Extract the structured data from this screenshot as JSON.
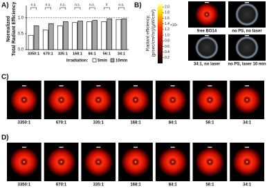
{
  "panel_labels": [
    "A)",
    "B)",
    "C)",
    "D)"
  ],
  "chart_data": {
    "type": "bar",
    "ylabel": [
      "Normalized",
      "Total Radiant Efficiency"
    ],
    "categories": [
      "3350:1",
      "670:1",
      "335:1",
      "168:1",
      "84:1",
      "56:1",
      "34:1"
    ],
    "series": [
      {
        "name": "5min",
        "color": "#ffffff",
        "values": [
          0.45,
          0.62,
          0.75,
          0.85,
          0.88,
          0.88,
          0.95
        ]
      },
      {
        "name": "10min",
        "color": "#a6a6a6",
        "values": [
          0.75,
          0.82,
          0.88,
          0.9,
          0.92,
          0.97,
          0.97
        ]
      }
    ],
    "ylim": [
      0,
      1.3
    ],
    "yticks": [
      {
        "value": 0,
        "label": "0.0"
      },
      {
        "value": 0.5,
        "label": "0.5"
      },
      {
        "value": 1,
        "label": "1.0"
      }
    ],
    "reference_line": 1,
    "legend_title": "Irradiation:",
    "bracket_labels": [
      "n.s.",
      "n.s.",
      "n.s.",
      "n.s.",
      "n.s.",
      "#",
      "n.s."
    ]
  },
  "colorbar": {
    "label": [
      "Radiant efficiency,",
      "(p/sec/cm²/sr)/(μW/cm²)"
    ],
    "clim": [
      0,
      2.1
    ],
    "ticks": [
      {
        "value": 2.0,
        "label": "2.0"
      },
      {
        "value": 1.8,
        "label": "1.8"
      },
      {
        "value": 1.6,
        "label": "1.6"
      },
      {
        "value": 1.4,
        "label": "1.4"
      },
      {
        "value": 1.2,
        "label": "1.2"
      },
      {
        "value": 1.0,
        "label": "1.0"
      },
      {
        "value": 0.8,
        "label": "0.8"
      },
      {
        "value": 0.6,
        "label": "0.6"
      },
      {
        "value": 0.4,
        "label": "0.4"
      },
      {
        "value": 0.2,
        "label": "0.2"
      }
    ],
    "multiplier": "×10⁹"
  },
  "panel_b_images": [
    "free BO14",
    "no PS, no laser",
    "34:1, no laser",
    "no PS, laser 10 min"
  ],
  "panel_c_images": [
    "3350:1",
    "670:1",
    "335:1",
    "168:1",
    "84:1",
    "56:1",
    "34:1"
  ],
  "panel_d_images": [
    "3350:1",
    "670:1",
    "335:1",
    "168:1",
    "84:1",
    "56:1",
    "34:1"
  ]
}
